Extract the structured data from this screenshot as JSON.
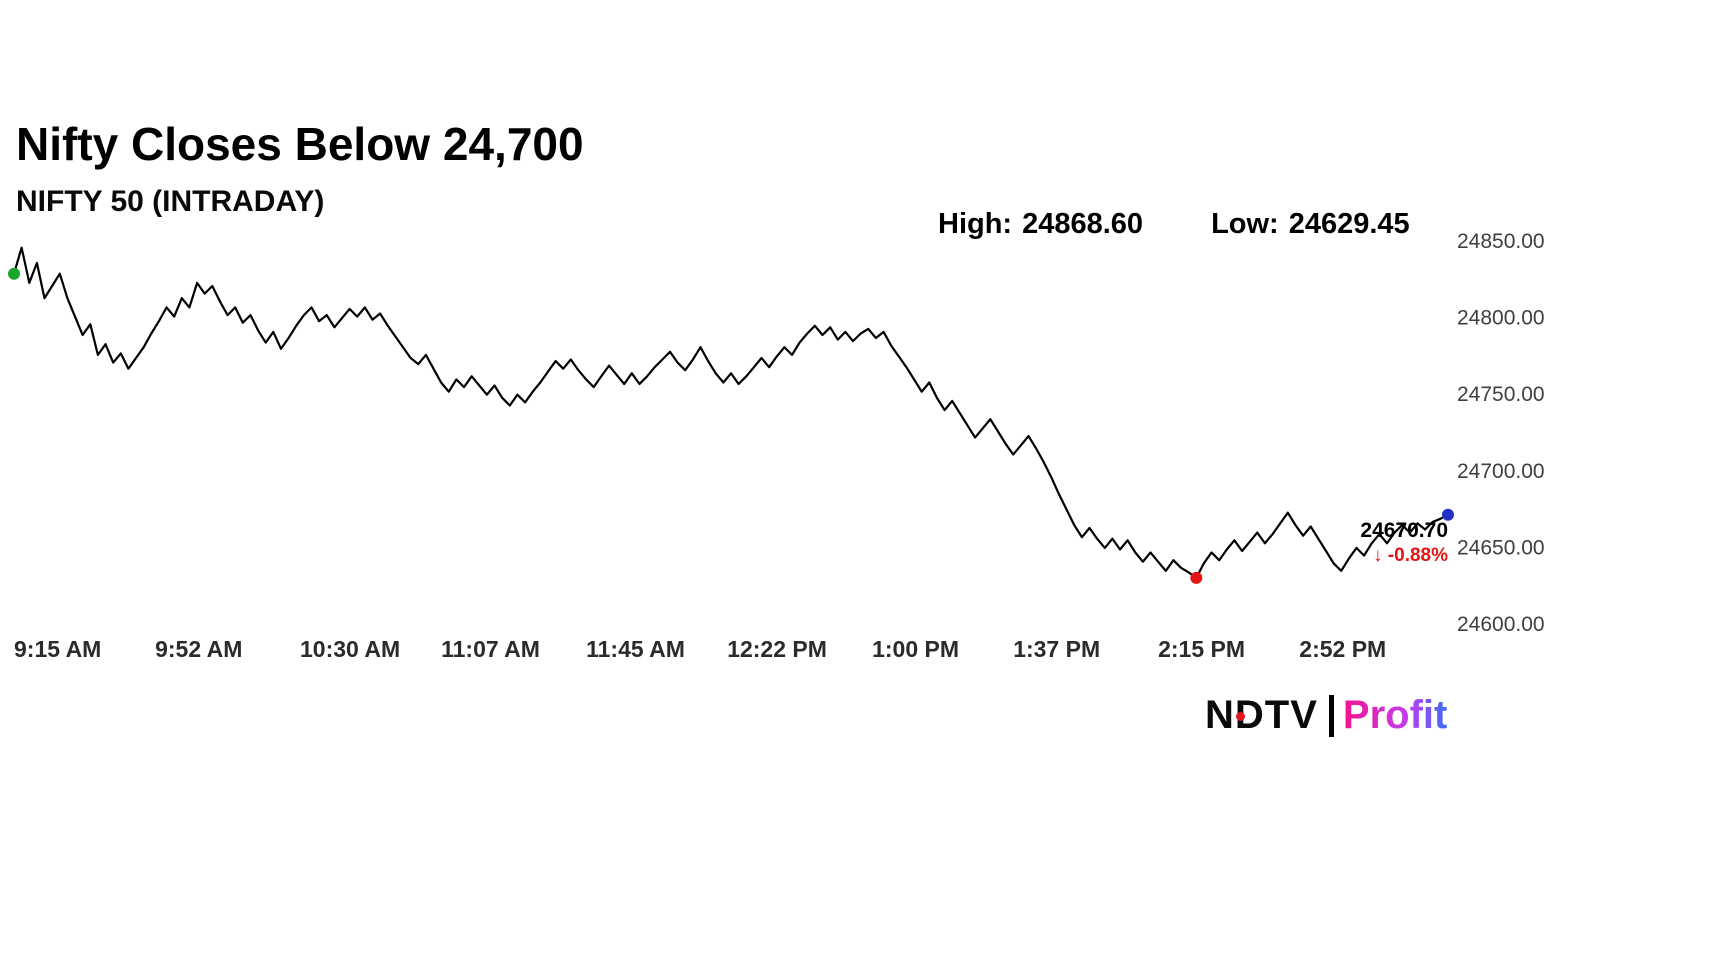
{
  "header": {
    "title": "Nifty Closes Below 24,700",
    "subtitle": "NIFTY 50 (INTRADAY)"
  },
  "stats": {
    "high_label": "High:",
    "high_value": "24868.60",
    "low_label": "Low:",
    "low_value": "24629.45"
  },
  "chart_data": {
    "type": "line",
    "title": "NIFTY 50 (INTRADAY)",
    "interval_minutes": 2,
    "prices": [
      24828,
      24845,
      24822,
      24835,
      24812,
      24820,
      24828,
      24812,
      24800,
      24788,
      24795,
      24775,
      24782,
      24770,
      24776,
      24766,
      24773,
      24780,
      24789,
      24797,
      24806,
      24800,
      24812,
      24806,
      24822,
      24815,
      24820,
      24810,
      24801,
      24806,
      24796,
      24801,
      24791,
      24783,
      24790,
      24779,
      24786,
      24794,
      24801,
      24806,
      24797,
      24801,
      24793,
      24799,
      24805,
      24800,
      24806,
      24798,
      24802,
      24794,
      24787,
      24780,
      24773,
      24769,
      24775,
      24766,
      24757,
      24751,
      24759,
      24754,
      24761,
      24755,
      24749,
      24755,
      24747,
      24742,
      24749,
      24744,
      24751,
      24757,
      24764,
      24771,
      24766,
      24772,
      24765,
      24759,
      24754,
      24761,
      24768,
      24762,
      24756,
      24763,
      24756,
      24761,
      24767,
      24772,
      24777,
      24770,
      24765,
      24772,
      24780,
      24771,
      24763,
      24757,
      24763,
      24756,
      24761,
      24767,
      24773,
      24767,
      24774,
      24780,
      24775,
      24783,
      24789,
      24794,
      24788,
      24793,
      24785,
      24790,
      24784,
      24789,
      24792,
      24786,
      24790,
      24781,
      24774,
      24767,
      24759,
      24751,
      24757,
      24747,
      24739,
      24745,
      24737,
      24729,
      24721,
      24727,
      24733,
      24725,
      24717,
      24710,
      24716,
      24722,
      24714,
      24705,
      24695,
      24684,
      24674,
      24664,
      24656,
      24662,
      24655,
      24649,
      24655,
      24648,
      24654,
      24646,
      24640,
      24646,
      24640,
      24634,
      24641,
      24636,
      24633,
      24629.45,
      24639,
      24646,
      24641,
      24648,
      24654,
      24647,
      24653,
      24659,
      24652,
      24658,
      24665,
      24672,
      24664,
      24657,
      24663,
      24655,
      24647,
      24639,
      24634,
      24642,
      24649,
      24644,
      24652,
      24658,
      24652,
      24659,
      24664,
      24659,
      24665,
      24661,
      24666,
      24668,
      24670.7
    ],
    "x_tick_minutes": [
      0,
      37,
      75,
      112,
      150,
      187,
      225,
      262,
      300,
      337
    ],
    "x_tick_labels": [
      "9:15 AM",
      "9:52 AM",
      "10:30 AM",
      "11:07 AM",
      "11:45 AM",
      "12:22 PM",
      "1:00 PM",
      "1:37 PM",
      "2:15 PM",
      "2:52 PM"
    ],
    "y_ticks": [
      24850,
      24800,
      24750,
      24700,
      24650,
      24600
    ],
    "y_tick_labels": [
      "24850.00",
      "24800.00",
      "24750.00",
      "24700.00",
      "24650.00",
      "24600.00"
    ],
    "ylim": [
      24600,
      24850
    ],
    "grid": false,
    "line_color": "#000000",
    "markers": [
      {
        "name": "open-marker",
        "index": 0,
        "color": "#1aa52b"
      },
      {
        "name": "low-marker",
        "index": 155,
        "color": "#e41414"
      },
      {
        "name": "close-marker",
        "index": 188,
        "color": "#2431c9"
      }
    ],
    "callout": {
      "price": "24670.70",
      "arrow": "↓",
      "change": "-0.88%",
      "price_color": "#000000",
      "change_color": "#e41414"
    },
    "high": 24868.6,
    "low": 24629.45,
    "close": 24670.7,
    "change_pct": -0.88,
    "legend_position": "none"
  },
  "branding": {
    "ndtv": "NDTV",
    "profit": "Profit",
    "dot_color": "#e01622",
    "profit_gradient_start": "#f5128f",
    "profit_gradient_end": "#3d6cf5"
  }
}
